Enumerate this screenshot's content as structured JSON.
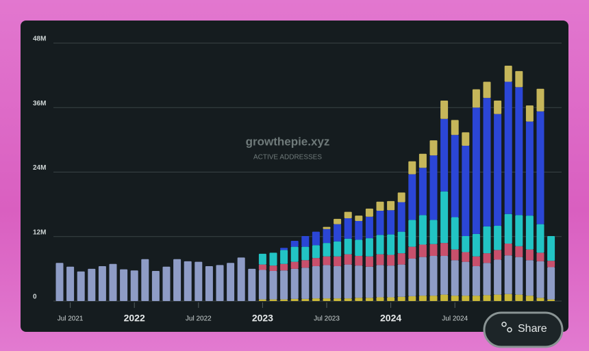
{
  "chart_data": {
    "type": "bar",
    "stacked": true,
    "watermark": "growthepie.xyz",
    "subtitle": "ACTIVE ADDRESSES",
    "share_button": "Share",
    "x": [
      "2021-06",
      "2021-07",
      "2021-08",
      "2021-09",
      "2021-10",
      "2021-11",
      "2021-12",
      "2022-01",
      "2022-02",
      "2022-03",
      "2022-04",
      "2022-05",
      "2022-06",
      "2022-07",
      "2022-08",
      "2022-09",
      "2022-10",
      "2022-11",
      "2022-12",
      "2023-01",
      "2023-02",
      "2023-03",
      "2023-04",
      "2023-05",
      "2023-06",
      "2023-07",
      "2023-08",
      "2023-09",
      "2023-10",
      "2023-11",
      "2023-12",
      "2024-01",
      "2024-02",
      "2024-03",
      "2024-04",
      "2024-05",
      "2024-06",
      "2024-07",
      "2024-08",
      "2024-09",
      "2024-10",
      "2024-11",
      "2024-12",
      "2025-01",
      "2025-02",
      "2025-03",
      "2025-04"
    ],
    "xticks": [
      {
        "value": "2021-07",
        "label": "Jul 2021"
      },
      {
        "value": "2022-01",
        "label": "2022"
      },
      {
        "value": "2022-07",
        "label": "Jul 2022"
      },
      {
        "value": "2023-01",
        "label": "2023"
      },
      {
        "value": "2023-07",
        "label": "Jul 2023"
      },
      {
        "value": "2024-01",
        "label": "2024"
      },
      {
        "value": "2024-07",
        "label": "Jul 2024"
      }
    ],
    "ylim": [
      0,
      48
    ],
    "yticks": [
      0,
      {
        "value": 12,
        "label": "12M"
      },
      {
        "value": 24,
        "label": "24M"
      },
      {
        "value": 36,
        "label": "36M"
      },
      {
        "value": 48,
        "label": "48M"
      }
    ],
    "grid": true,
    "series": [
      {
        "color": "#c9b83a",
        "values": [
          0,
          0,
          0,
          0,
          0,
          0,
          0,
          0,
          0,
          0,
          0,
          0,
          0,
          0,
          0,
          0,
          0,
          0,
          0,
          0.3,
          0.3,
          0.3,
          0.4,
          0.4,
          0.5,
          0.5,
          0.5,
          0.5,
          0.6,
          0.6,
          0.7,
          0.7,
          0.8,
          0.9,
          1.0,
          1.0,
          1.2,
          1.0,
          1.0,
          1.0,
          1.1,
          1.2,
          1.3,
          1.2,
          1.0,
          0.6,
          0.3
        ]
      },
      {
        "color": "#8e9cc6",
        "values": [
          7.1,
          6.4,
          5.5,
          6.0,
          6.5,
          6.9,
          5.9,
          5.7,
          7.8,
          5.6,
          6.4,
          7.8,
          7.4,
          7.3,
          6.5,
          6.7,
          7.1,
          8.1,
          6.0,
          5.5,
          5.3,
          5.4,
          5.6,
          5.8,
          6.0,
          6.2,
          6.0,
          6.3,
          6.0,
          5.8,
          6.0,
          5.9,
          6.0,
          7.0,
          7.2,
          7.4,
          7.2,
          6.6,
          6.3,
          5.5,
          6.0,
          6.5,
          7.2,
          7.0,
          6.6,
          6.8,
          6.0
        ]
      },
      {
        "color": "#c8506c",
        "values": [
          0,
          0,
          0,
          0,
          0,
          0,
          0,
          0,
          0,
          0,
          0,
          0,
          0,
          0,
          0,
          0,
          0,
          0,
          0,
          1.0,
          1.0,
          1.2,
          1.3,
          1.4,
          1.5,
          1.6,
          1.8,
          1.9,
          1.8,
          1.9,
          2.0,
          2.0,
          2.1,
          2.2,
          2.3,
          2.2,
          2.4,
          2.0,
          1.8,
          1.8,
          1.8,
          1.8,
          2.2,
          2.0,
          2.0,
          1.6,
          1.2
        ]
      },
      {
        "color": "#22c4c4",
        "values": [
          0,
          0,
          0,
          0,
          0,
          0,
          0,
          0,
          0,
          0,
          0,
          0,
          0,
          0,
          0,
          0,
          0,
          0,
          0,
          2.0,
          2.4,
          2.6,
          2.8,
          2.5,
          2.4,
          2.5,
          2.8,
          2.9,
          3.0,
          3.4,
          3.6,
          3.8,
          4.0,
          5.0,
          5.5,
          4.5,
          9.6,
          6.0,
          3.0,
          4.2,
          5.0,
          4.5,
          5.5,
          5.8,
          6.3,
          5.3,
          4.6
        ]
      },
      {
        "color": "#2b46d6",
        "values": [
          0,
          0,
          0,
          0,
          0,
          0,
          0,
          0,
          0,
          0,
          0,
          0,
          0,
          0,
          0,
          0,
          0,
          0,
          0,
          0,
          0,
          0.4,
          1.1,
          2.0,
          2.5,
          2.6,
          3.2,
          3.8,
          3.5,
          4.0,
          4.5,
          4.5,
          5.5,
          8.5,
          8.8,
          12.0,
          13.5,
          15.3,
          16.8,
          23.5,
          23.9,
          20.8,
          24.6,
          23.8,
          17.5,
          21.0,
          0
        ]
      },
      {
        "color": "#c6b65a",
        "values": [
          0,
          0,
          0,
          0,
          0,
          0,
          0,
          0,
          0,
          0,
          0,
          0,
          0,
          0,
          0,
          0,
          0,
          0,
          0,
          0,
          0,
          0,
          0,
          0,
          0,
          0.4,
          1.0,
          1.2,
          1.0,
          1.5,
          1.7,
          1.7,
          1.8,
          2.4,
          2.6,
          2.8,
          3.4,
          2.8,
          2.5,
          3.4,
          3.0,
          2.5,
          3.0,
          3.0,
          3.0,
          4.2,
          0
        ]
      }
    ]
  }
}
